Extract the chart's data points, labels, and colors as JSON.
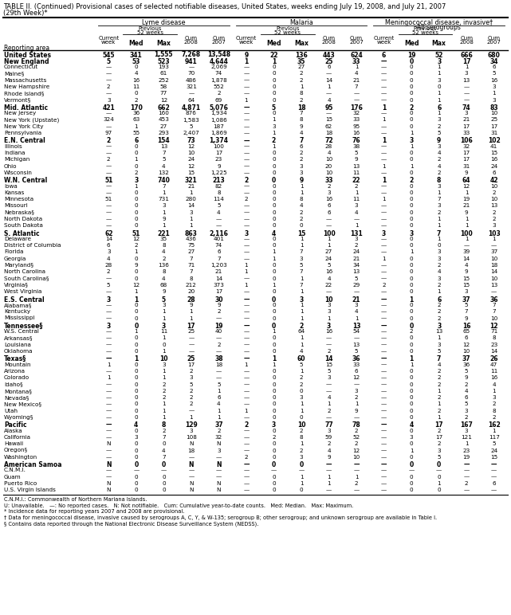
{
  "title_line1": "TABLE II. (Continued) Provisional cases of selected notifiable diseases, United States, weeks ending July 19, 2008, and July 21, 2007",
  "title_line2": "(29th Week)*",
  "rows": [
    [
      "United States",
      "545",
      "341",
      "1,555",
      "7,268",
      "13,548",
      "9",
      "22",
      "136",
      "443",
      "624",
      "6",
      "19",
      "52",
      "666",
      "680"
    ],
    [
      "New England",
      "5",
      "53",
      "523",
      "941",
      "4,644",
      "1",
      "1",
      "35",
      "25",
      "33",
      "—",
      "0",
      "3",
      "17",
      "34"
    ],
    [
      "Connecticut",
      "—",
      "0",
      "193",
      "—",
      "2,069",
      "—",
      "0",
      "27",
      "6",
      "1",
      "—",
      "0",
      "1",
      "1",
      "6"
    ],
    [
      "Maine§",
      "—",
      "4",
      "61",
      "70",
      "74",
      "—",
      "0",
      "2",
      "—",
      "4",
      "—",
      "0",
      "1",
      "3",
      "5"
    ],
    [
      "Massachusetts",
      "—",
      "16",
      "252",
      "486",
      "1,878",
      "—",
      "0",
      "2",
      "14",
      "21",
      "—",
      "0",
      "3",
      "13",
      "16"
    ],
    [
      "New Hampshire",
      "2",
      "11",
      "58",
      "321",
      "552",
      "—",
      "0",
      "1",
      "1",
      "7",
      "—",
      "0",
      "0",
      "—",
      "3"
    ],
    [
      "Rhode Island§",
      "—",
      "0",
      "77",
      "—",
      "2",
      "—",
      "0",
      "8",
      "—",
      "—",
      "—",
      "0",
      "1",
      "—",
      "1"
    ],
    [
      "Vermont§",
      "3",
      "2",
      "12",
      "64",
      "69",
      "1",
      "0",
      "2",
      "4",
      "—",
      "—",
      "0",
      "1",
      "—",
      "3"
    ],
    [
      "Mid. Atlantic",
      "421",
      "170",
      "662",
      "4,871",
      "5,076",
      "—",
      "5",
      "18",
      "95",
      "176",
      "1",
      "2",
      "6",
      "74",
      "83"
    ],
    [
      "New Jersey",
      "—",
      "36",
      "160",
      "876",
      "1,934",
      "—",
      "0",
      "7",
      "—",
      "32",
      "—",
      "0",
      "1",
      "3",
      "10"
    ],
    [
      "New York (Upstate)",
      "324",
      "63",
      "453",
      "1,583",
      "1,086",
      "—",
      "1",
      "8",
      "15",
      "33",
      "1",
      "0",
      "3",
      "21",
      "25"
    ],
    [
      "New York City",
      "—",
      "1",
      "27",
      "5",
      "187",
      "—",
      "3",
      "9",
      "62",
      "95",
      "—",
      "0",
      "2",
      "17",
      "17"
    ],
    [
      "Pennsylvania",
      "97",
      "55",
      "293",
      "2,407",
      "1,869",
      "—",
      "1",
      "4",
      "18",
      "16",
      "—",
      "1",
      "5",
      "33",
      "31"
    ],
    [
      "E.N. Central",
      "2",
      "6",
      "154",
      "73",
      "1,374",
      "—",
      "2",
      "7",
      "72",
      "76",
      "1",
      "3",
      "9",
      "106",
      "102"
    ],
    [
      "Illinois",
      "—",
      "0",
      "13",
      "12",
      "100",
      "—",
      "1",
      "6",
      "28",
      "38",
      "—",
      "1",
      "3",
      "32",
      "41"
    ],
    [
      "Indiana",
      "—",
      "0",
      "7",
      "10",
      "17",
      "—",
      "0",
      "2",
      "4",
      "5",
      "—",
      "0",
      "4",
      "17",
      "15"
    ],
    [
      "Michigan",
      "2",
      "1",
      "5",
      "24",
      "23",
      "—",
      "0",
      "2",
      "10",
      "9",
      "—",
      "0",
      "2",
      "17",
      "16"
    ],
    [
      "Ohio",
      "—",
      "0",
      "4",
      "12",
      "9",
      "—",
      "0",
      "3",
      "20",
      "13",
      "1",
      "1",
      "4",
      "31",
      "24"
    ],
    [
      "Wisconsin",
      "—",
      "2",
      "132",
      "15",
      "1,225",
      "—",
      "0",
      "3",
      "10",
      "11",
      "—",
      "0",
      "2",
      "9",
      "6"
    ],
    [
      "W.N. Central",
      "51",
      "3",
      "740",
      "321",
      "213",
      "2",
      "0",
      "9",
      "33",
      "22",
      "1",
      "2",
      "8",
      "64",
      "42"
    ],
    [
      "Iowa",
      "—",
      "1",
      "7",
      "21",
      "82",
      "—",
      "0",
      "1",
      "2",
      "2",
      "—",
      "0",
      "3",
      "12",
      "10"
    ],
    [
      "Kansas",
      "—",
      "0",
      "1",
      "1",
      "8",
      "—",
      "0",
      "1",
      "3",
      "1",
      "—",
      "0",
      "1",
      "1",
      "2"
    ],
    [
      "Minnesota",
      "51",
      "0",
      "731",
      "280",
      "114",
      "2",
      "0",
      "8",
      "16",
      "11",
      "1",
      "0",
      "7",
      "19",
      "10"
    ],
    [
      "Missouri",
      "—",
      "0",
      "3",
      "14",
      "5",
      "—",
      "0",
      "4",
      "6",
      "3",
      "—",
      "0",
      "3",
      "21",
      "13"
    ],
    [
      "Nebraska§",
      "—",
      "0",
      "1",
      "3",
      "4",
      "—",
      "0",
      "2",
      "6",
      "4",
      "—",
      "0",
      "2",
      "9",
      "2"
    ],
    [
      "North Dakota",
      "—",
      "0",
      "9",
      "1",
      "—",
      "—",
      "0",
      "2",
      "—",
      "—",
      "—",
      "0",
      "1",
      "1",
      "2"
    ],
    [
      "South Dakota",
      "—",
      "0",
      "1",
      "1",
      "—",
      "—",
      "0",
      "0",
      "—",
      "1",
      "—",
      "0",
      "1",
      "1",
      "3"
    ],
    [
      "S. Atlantic",
      "62",
      "51",
      "221",
      "863",
      "2,116",
      "3",
      "4",
      "15",
      "100",
      "131",
      "3",
      "3",
      "7",
      "100",
      "103"
    ],
    [
      "Delaware",
      "14",
      "12",
      "35",
      "436",
      "401",
      "—",
      "0",
      "1",
      "1",
      "3",
      "—",
      "0",
      "1",
      "1",
      "1"
    ],
    [
      "District of Columbia",
      "6",
      "2",
      "8",
      "75",
      "74",
      "—",
      "0",
      "1",
      "1",
      "2",
      "—",
      "0",
      "0",
      "—",
      "—"
    ],
    [
      "Florida",
      "3",
      "1",
      "4",
      "27",
      "6",
      "—",
      "1",
      "7",
      "27",
      "24",
      "—",
      "1",
      "3",
      "39",
      "37"
    ],
    [
      "Georgia",
      "4",
      "0",
      "2",
      "7",
      "7",
      "—",
      "1",
      "3",
      "24",
      "21",
      "1",
      "0",
      "3",
      "14",
      "10"
    ],
    [
      "Maryland§",
      "28",
      "9",
      "136",
      "71",
      "1,203",
      "1",
      "0",
      "5",
      "5",
      "34",
      "—",
      "0",
      "2",
      "4",
      "18"
    ],
    [
      "North Carolina",
      "2",
      "0",
      "8",
      "7",
      "21",
      "1",
      "0",
      "7",
      "16",
      "13",
      "—",
      "0",
      "4",
      "9",
      "14"
    ],
    [
      "South Carolina§",
      "—",
      "0",
      "4",
      "8",
      "14",
      "—",
      "0",
      "1",
      "4",
      "5",
      "—",
      "0",
      "3",
      "15",
      "10"
    ],
    [
      "Virginia§",
      "5",
      "12",
      "68",
      "212",
      "373",
      "1",
      "1",
      "7",
      "22",
      "29",
      "2",
      "0",
      "2",
      "15",
      "13"
    ],
    [
      "West Virginia",
      "—",
      "1",
      "9",
      "20",
      "17",
      "—",
      "0",
      "1",
      "—",
      "—",
      "—",
      "0",
      "1",
      "3",
      "—"
    ],
    [
      "E.S. Central",
      "3",
      "1",
      "5",
      "28",
      "30",
      "—",
      "0",
      "3",
      "10",
      "21",
      "—",
      "1",
      "6",
      "37",
      "36"
    ],
    [
      "Alabama§",
      "—",
      "0",
      "3",
      "9",
      "9",
      "—",
      "0",
      "1",
      "3",
      "3",
      "—",
      "0",
      "2",
      "5",
      "7"
    ],
    [
      "Kentucky",
      "—",
      "0",
      "1",
      "1",
      "2",
      "—",
      "0",
      "1",
      "3",
      "4",
      "—",
      "0",
      "2",
      "7",
      "7"
    ],
    [
      "Mississippi",
      "—",
      "0",
      "1",
      "1",
      "—",
      "—",
      "0",
      "1",
      "1",
      "1",
      "—",
      "0",
      "2",
      "9",
      "10"
    ],
    [
      "Tennessee§",
      "3",
      "0",
      "3",
      "17",
      "19",
      "—",
      "0",
      "2",
      "3",
      "13",
      "—",
      "0",
      "3",
      "16",
      "12"
    ],
    [
      "W.S. Central",
      "—",
      "1",
      "11",
      "25",
      "40",
      "—",
      "1",
      "64",
      "16",
      "54",
      "—",
      "2",
      "13",
      "65",
      "71"
    ],
    [
      "Arkansas§",
      "—",
      "0",
      "1",
      "—",
      "—",
      "—",
      "0",
      "1",
      "—",
      "—",
      "—",
      "0",
      "1",
      "6",
      "8"
    ],
    [
      "Louisiana",
      "—",
      "0",
      "0",
      "—",
      "2",
      "—",
      "0",
      "1",
      "—",
      "13",
      "—",
      "0",
      "3",
      "12",
      "23"
    ],
    [
      "Oklahoma",
      "—",
      "0",
      "1",
      "—",
      "—",
      "—",
      "0",
      "4",
      "2",
      "5",
      "—",
      "0",
      "5",
      "10",
      "14"
    ],
    [
      "Texas§",
      "—",
      "1",
      "10",
      "25",
      "38",
      "—",
      "1",
      "60",
      "14",
      "36",
      "—",
      "1",
      "7",
      "37",
      "26"
    ],
    [
      "Mountain",
      "1",
      "0",
      "3",
      "17",
      "18",
      "1",
      "1",
      "5",
      "15",
      "33",
      "—",
      "1",
      "4",
      "36",
      "47"
    ],
    [
      "Arizona",
      "—",
      "0",
      "1",
      "2",
      "—",
      "—",
      "0",
      "1",
      "5",
      "6",
      "—",
      "0",
      "2",
      "5",
      "11"
    ],
    [
      "Colorado",
      "1",
      "0",
      "1",
      "3",
      "—",
      "—",
      "0",
      "2",
      "3",
      "12",
      "—",
      "0",
      "2",
      "9",
      "16"
    ],
    [
      "Idaho§",
      "—",
      "0",
      "2",
      "5",
      "5",
      "—",
      "0",
      "2",
      "—",
      "—",
      "—",
      "0",
      "2",
      "2",
      "4"
    ],
    [
      "Montana§",
      "—",
      "0",
      "2",
      "2",
      "1",
      "—",
      "0",
      "0",
      "—",
      "3",
      "—",
      "0",
      "1",
      "4",
      "1"
    ],
    [
      "Nevada§",
      "—",
      "0",
      "2",
      "2",
      "6",
      "—",
      "0",
      "3",
      "4",
      "2",
      "—",
      "0",
      "2",
      "6",
      "3"
    ],
    [
      "New Mexico§",
      "—",
      "0",
      "1",
      "2",
      "4",
      "—",
      "0",
      "1",
      "1",
      "1",
      "—",
      "0",
      "1",
      "5",
      "2"
    ],
    [
      "Utah",
      "—",
      "0",
      "1",
      "—",
      "1",
      "1",
      "0",
      "1",
      "2",
      "9",
      "—",
      "0",
      "2",
      "3",
      "8"
    ],
    [
      "Wyoming§",
      "—",
      "0",
      "1",
      "1",
      "1",
      "—",
      "0",
      "0",
      "—",
      "—",
      "—",
      "0",
      "1",
      "2",
      "2"
    ],
    [
      "Pacific",
      "—",
      "4",
      "8",
      "129",
      "37",
      "2",
      "3",
      "10",
      "77",
      "78",
      "—",
      "4",
      "17",
      "167",
      "162"
    ],
    [
      "Alaska",
      "—",
      "0",
      "2",
      "3",
      "2",
      "—",
      "0",
      "2",
      "3",
      "2",
      "—",
      "0",
      "2",
      "3",
      "1"
    ],
    [
      "California",
      "—",
      "3",
      "7",
      "108",
      "32",
      "—",
      "2",
      "8",
      "59",
      "52",
      "—",
      "3",
      "17",
      "121",
      "117"
    ],
    [
      "Hawaii",
      "N",
      "0",
      "0",
      "N",
      "N",
      "—",
      "0",
      "1",
      "2",
      "2",
      "—",
      "0",
      "2",
      "1",
      "5"
    ],
    [
      "Oregon§",
      "—",
      "0",
      "4",
      "18",
      "3",
      "—",
      "0",
      "2",
      "4",
      "12",
      "—",
      "1",
      "3",
      "23",
      "24"
    ],
    [
      "Washington",
      "—",
      "0",
      "7",
      "—",
      "—",
      "2",
      "0",
      "3",
      "9",
      "10",
      "—",
      "0",
      "5",
      "19",
      "15"
    ],
    [
      "American Samoa",
      "N",
      "0",
      "0",
      "N",
      "N",
      "—",
      "0",
      "0",
      "—",
      "—",
      "—",
      "0",
      "0",
      "—",
      "—"
    ],
    [
      "C.N.M.I.",
      "—",
      "—",
      "—",
      "—",
      "—",
      "—",
      "—",
      "—",
      "—",
      "—",
      "—",
      "—",
      "—",
      "—",
      "—"
    ],
    [
      "Guam",
      "—",
      "0",
      "0",
      "—",
      "—",
      "—",
      "0",
      "1",
      "1",
      "1",
      "—",
      "0",
      "0",
      "—",
      "—"
    ],
    [
      "Puerto Rico",
      "N",
      "0",
      "0",
      "N",
      "N",
      "—",
      "0",
      "1",
      "1",
      "2",
      "—",
      "0",
      "1",
      "2",
      "6"
    ],
    [
      "U.S. Virgin Islands",
      "N",
      "0",
      "0",
      "N",
      "N",
      "—",
      "0",
      "0",
      "—",
      "—",
      "—",
      "0",
      "0",
      "—",
      "—"
    ]
  ],
  "bold_rows": [
    0,
    1,
    8,
    13,
    19,
    27,
    37,
    41,
    46,
    56,
    62
  ],
  "footnotes": [
    "C.N.M.I.: Commonwealth of Northern Mariana Islands.",
    "U: Unavailable.   —: No reported cases.   N: Not notifiable.   Cum: Cumulative year-to-date counts.   Med: Median.   Max: Maximum.",
    "* Incidence data for reporting years 2007 and 2008 are provisional.",
    "† Data for meningococcal disease, invasive caused by serogroups A, C, Y, & W-135; serogroup B; other serogroup; and unknown serogroup are available in Table I.",
    "§ Contains data reported through the National Electronic Disease Surveillance System (NEDSS)."
  ]
}
